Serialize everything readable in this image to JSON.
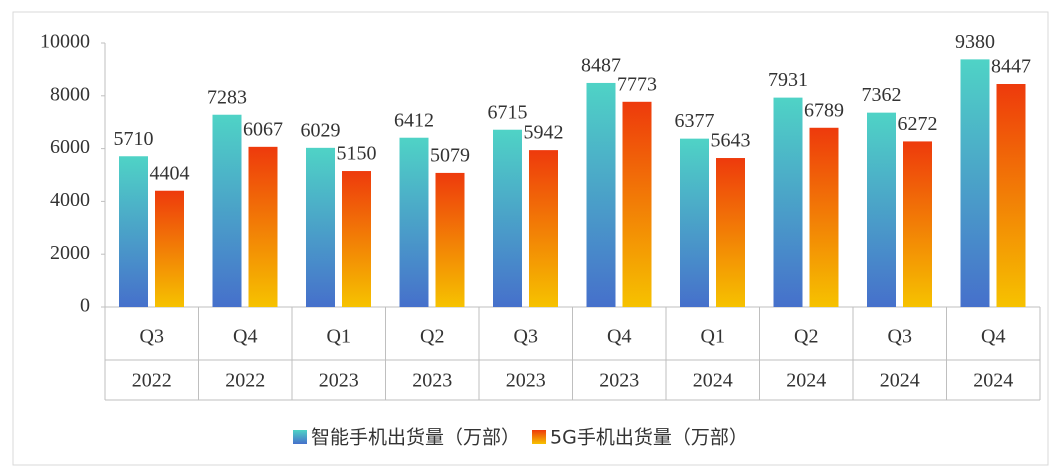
{
  "chart_data": {
    "type": "bar",
    "categories": [
      "Q3",
      "Q4",
      "Q1",
      "Q2",
      "Q3",
      "Q4",
      "Q1",
      "Q2",
      "Q3",
      "Q4"
    ],
    "category_years": [
      "2022",
      "2022",
      "2023",
      "2023",
      "2023",
      "2023",
      "2024",
      "2024",
      "2024",
      "2024"
    ],
    "series": [
      {
        "name": "智能手机出货量（万部）",
        "color": [
          "#4fd3c6",
          "#4670cb"
        ],
        "values": [
          5710,
          7283,
          6029,
          6412,
          6715,
          8487,
          6377,
          7931,
          7362,
          9380
        ]
      },
      {
        "name": "5G手机出货量（万部）",
        "color": [
          "#ee3a0c",
          "#f6c200"
        ],
        "values": [
          4404,
          6067,
          5150,
          5079,
          5942,
          7773,
          5643,
          6789,
          6272,
          8447
        ]
      }
    ],
    "ylim": [
      0,
      10000
    ],
    "yticks": [
      0,
      2000,
      4000,
      6000,
      8000,
      10000
    ],
    "legend": "bottom"
  }
}
